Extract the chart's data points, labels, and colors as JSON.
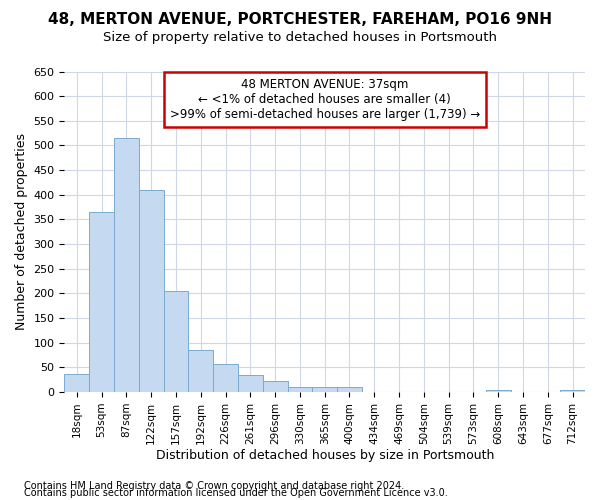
{
  "title1": "48, MERTON AVENUE, PORTCHESTER, FAREHAM, PO16 9NH",
  "title2": "Size of property relative to detached houses in Portsmouth",
  "xlabel": "Distribution of detached houses by size in Portsmouth",
  "ylabel": "Number of detached properties",
  "categories": [
    "18sqm",
    "53sqm",
    "87sqm",
    "122sqm",
    "157sqm",
    "192sqm",
    "226sqm",
    "261sqm",
    "296sqm",
    "330sqm",
    "365sqm",
    "400sqm",
    "434sqm",
    "469sqm",
    "504sqm",
    "539sqm",
    "573sqm",
    "608sqm",
    "643sqm",
    "677sqm",
    "712sqm"
  ],
  "values": [
    37,
    365,
    515,
    410,
    205,
    85,
    57,
    35,
    23,
    10,
    10,
    10,
    0,
    0,
    0,
    0,
    0,
    5,
    0,
    0,
    5
  ],
  "bar_color": "#c5d9f0",
  "bar_edge_color": "#7aaad0",
  "annotation_box_text": "48 MERTON AVENUE: 37sqm\n← <1% of detached houses are smaller (4)\n>99% of semi-detached houses are larger (1,739) →",
  "ylim_max": 650,
  "ytick_step": 50,
  "footnote1": "Contains HM Land Registry data © Crown copyright and database right 2024.",
  "footnote2": "Contains public sector information licensed under the Open Government Licence v3.0.",
  "bg_color": "#ffffff",
  "grid_color": "#d0d8e8",
  "title1_fontsize": 11,
  "title2_fontsize": 9.5,
  "axis_label_fontsize": 9,
  "tick_fontsize": 8,
  "annotation_fontsize": 8.5,
  "footnote_fontsize": 7,
  "red_color": "#cc0000"
}
